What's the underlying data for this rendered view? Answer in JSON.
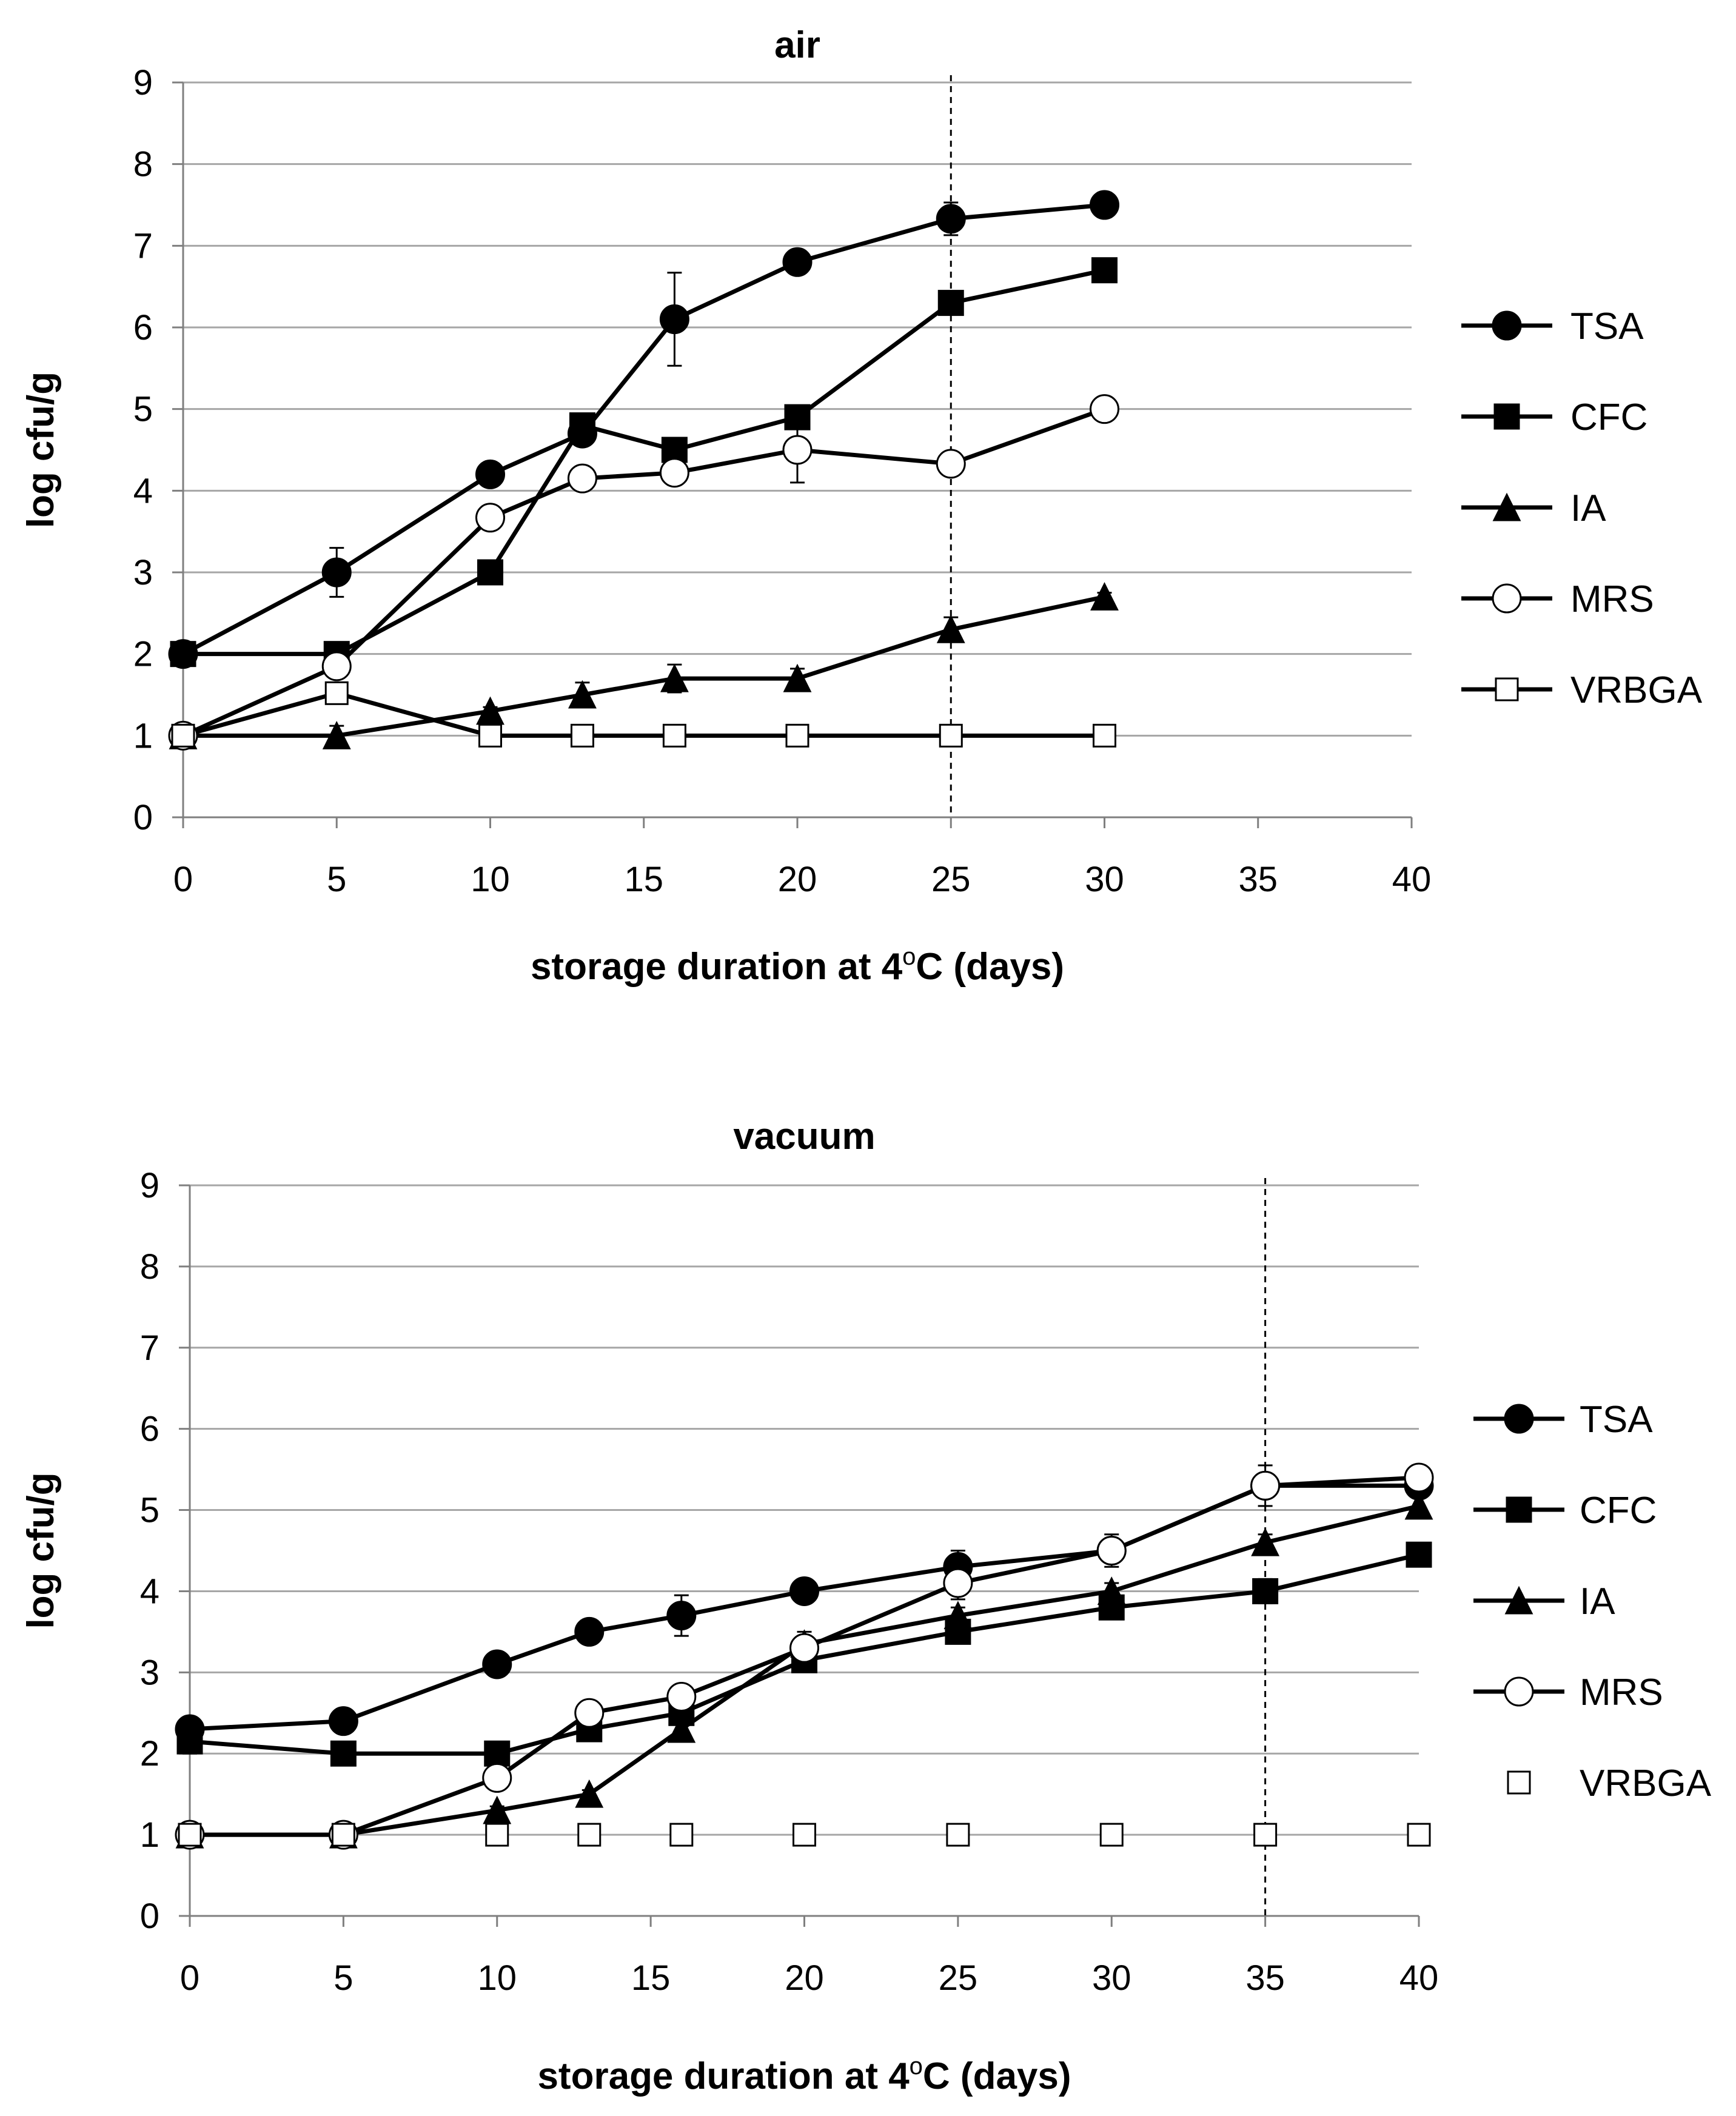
{
  "chart_data": [
    {
      "type": "line",
      "title": "air",
      "xlabel": "storage duration at 4°C (days)",
      "xlabel_main": "storage duration at 4",
      "xlabel_sup": "o",
      "xlabel_end": "C (days)",
      "ylabel": "log cfu/g",
      "xlim": [
        0,
        40
      ],
      "ylim": [
        0,
        9
      ],
      "xticks": [
        "0",
        "5",
        "10",
        "15",
        "20",
        "25",
        "30",
        "35",
        "40"
      ],
      "yticks": [
        "0",
        "1",
        "2",
        "3",
        "4",
        "5",
        "6",
        "7",
        "8",
        "9"
      ],
      "grid": true,
      "legend_position": "right",
      "reference_line_x": 25,
      "series": [
        {
          "name": "TSA",
          "marker": "circle",
          "filled": true,
          "line": true,
          "x": [
            0,
            5,
            10,
            13,
            16,
            20,
            25,
            30
          ],
          "y": [
            2.0,
            3.0,
            4.2,
            4.7,
            6.1,
            6.8,
            7.33,
            7.5
          ],
          "err": [
            0.05,
            0.3,
            0.05,
            0.1,
            0.57,
            0.05,
            0.2,
            0.15
          ]
        },
        {
          "name": "CFC",
          "marker": "square",
          "filled": true,
          "line": true,
          "x": [
            0,
            5,
            10,
            13,
            16,
            20,
            25,
            30
          ],
          "y": [
            2.0,
            2.0,
            3.0,
            4.8,
            4.5,
            4.9,
            6.3,
            6.7
          ],
          "err": [
            0.05,
            0.05,
            0.05,
            0.05,
            0.12,
            0.05,
            0.1,
            0.05
          ]
        },
        {
          "name": "IA",
          "marker": "triangle",
          "filled": true,
          "line": true,
          "x": [
            0,
            5,
            10,
            13,
            16,
            20,
            25,
            30
          ],
          "y": [
            1.0,
            1.0,
            1.3,
            1.5,
            1.7,
            1.7,
            2.3,
            2.7
          ],
          "err": [
            0.05,
            0.12,
            0.05,
            0.15,
            0.17,
            0.12,
            0.15,
            0.05
          ]
        },
        {
          "name": "MRS",
          "marker": "circle",
          "filled": false,
          "line": true,
          "x": [
            0,
            5,
            10,
            13,
            16,
            20,
            25,
            30
          ],
          "y": [
            1.0,
            1.85,
            3.67,
            4.15,
            4.22,
            4.5,
            4.33,
            5.0
          ],
          "err": [
            0.05,
            0.05,
            0.05,
            0.05,
            0.15,
            0.4,
            0.1,
            0.05
          ]
        },
        {
          "name": "VRBGA",
          "marker": "square",
          "filled": false,
          "line": true,
          "x": [
            0,
            5,
            10,
            13,
            16,
            20,
            25,
            30
          ],
          "y": [
            1.0,
            1.52,
            1.0,
            1.0,
            1.0,
            1.0,
            1.0,
            1.0
          ],
          "err": [
            0,
            0,
            0,
            0,
            0,
            0,
            0,
            0
          ]
        }
      ]
    },
    {
      "type": "line",
      "title": "vacuum",
      "xlabel": "storage duration at 4°C (days)",
      "xlabel_main": "storage duration at 4",
      "xlabel_sup": "o",
      "xlabel_end": "C (days)",
      "ylabel": "log cfu/g",
      "xlim": [
        0,
        40
      ],
      "ylim": [
        0,
        9
      ],
      "xticks": [
        "0",
        "5",
        "10",
        "15",
        "20",
        "25",
        "30",
        "35",
        "40"
      ],
      "yticks": [
        "0",
        "1",
        "2",
        "3",
        "4",
        "5",
        "6",
        "7",
        "8",
        "9"
      ],
      "grid": true,
      "legend_position": "right",
      "reference_line_x": 35,
      "series": [
        {
          "name": "TSA",
          "marker": "circle",
          "filled": true,
          "line": true,
          "x": [
            0,
            5,
            10,
            13,
            16,
            20,
            25,
            30,
            35,
            40
          ],
          "y": [
            2.3,
            2.4,
            3.1,
            3.5,
            3.7,
            4.0,
            4.3,
            4.5,
            5.3,
            5.3
          ],
          "err": [
            0.05,
            0.05,
            0.12,
            0.15,
            0.25,
            0.05,
            0.2,
            0.2,
            0.25,
            0.15
          ]
        },
        {
          "name": "CFC",
          "marker": "square",
          "filled": true,
          "line": true,
          "x": [
            0,
            5,
            10,
            13,
            16,
            20,
            25,
            30,
            35,
            40
          ],
          "y": [
            2.15,
            2.0,
            2.0,
            2.3,
            2.5,
            3.15,
            3.5,
            3.8,
            4.0,
            4.45
          ],
          "err": [
            0.15,
            0.05,
            0.05,
            0.1,
            0.1,
            0.12,
            0.12,
            0.1,
            0.15,
            0.05
          ]
        },
        {
          "name": "IA",
          "marker": "triangle",
          "filled": true,
          "line": true,
          "x": [
            0,
            5,
            10,
            13,
            16,
            20,
            25,
            30,
            35,
            40
          ],
          "y": [
            1.0,
            1.0,
            1.3,
            1.5,
            2.3,
            3.35,
            3.7,
            4.0,
            4.6,
            5.05
          ],
          "err": [
            0.05,
            0.05,
            0.05,
            0.05,
            0.1,
            0.15,
            0.1,
            0.1,
            0.1,
            0.15
          ]
        },
        {
          "name": "MRS",
          "marker": "circle",
          "filled": false,
          "line": true,
          "x": [
            0,
            5,
            10,
            13,
            16,
            20,
            25,
            30,
            35,
            40
          ],
          "y": [
            1.0,
            1.0,
            1.7,
            2.5,
            2.7,
            3.3,
            4.1,
            4.5,
            5.3,
            5.4
          ],
          "err": [
            0.05,
            0.05,
            0.05,
            0.15,
            0.1,
            0.15,
            0.2,
            0.15,
            0.1,
            0.15
          ]
        },
        {
          "name": "VRBGA",
          "marker": "square",
          "filled": false,
          "line": false,
          "x": [
            0,
            5,
            10,
            13,
            16,
            20,
            25,
            30,
            35,
            40
          ],
          "y": [
            1.0,
            1.0,
            1.0,
            1.0,
            1.0,
            1.0,
            1.0,
            1.0,
            1.0,
            1.0
          ],
          "err": [
            0,
            0,
            0,
            0,
            0,
            0,
            0,
            0,
            0,
            0
          ]
        }
      ]
    }
  ]
}
